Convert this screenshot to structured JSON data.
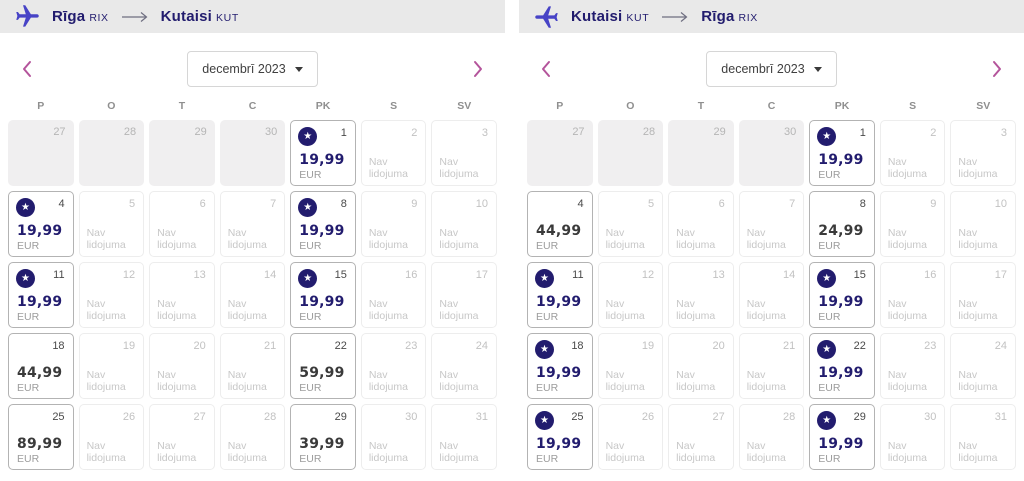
{
  "colors": {
    "navy": "#221c6e",
    "plane_blue": "#4743c6",
    "band_bg": "#e9e9e9",
    "chevron_pink": "#b4549b",
    "lowest_fare_price": "#221c6e",
    "regular_fare_price": "#3a3a3a"
  },
  "month_label": "decembrī 2023",
  "day_headers": [
    "P",
    "O",
    "T",
    "C",
    "PK",
    "S",
    "SV"
  ],
  "no_flight_label": "Nav lidojuma",
  "currency": "EUR",
  "panels": [
    {
      "direction": "outbound",
      "route": {
        "from_city": "Rīga",
        "from_code": "RIX",
        "to_city": "Kutaisi",
        "to_code": "KUT",
        "plane_points": "right"
      },
      "cells": [
        {
          "day": 27,
          "type": "prev"
        },
        {
          "day": 28,
          "type": "prev"
        },
        {
          "day": 29,
          "type": "prev"
        },
        {
          "day": 30,
          "type": "prev"
        },
        {
          "day": 1,
          "type": "flight",
          "price": "19,99",
          "star": true
        },
        {
          "day": 2,
          "type": "none"
        },
        {
          "day": 3,
          "type": "none"
        },
        {
          "day": 4,
          "type": "flight",
          "price": "19,99",
          "star": true
        },
        {
          "day": 5,
          "type": "none"
        },
        {
          "day": 6,
          "type": "none"
        },
        {
          "day": 7,
          "type": "none"
        },
        {
          "day": 8,
          "type": "flight",
          "price": "19,99",
          "star": true
        },
        {
          "day": 9,
          "type": "none"
        },
        {
          "day": 10,
          "type": "none"
        },
        {
          "day": 11,
          "type": "flight",
          "price": "19,99",
          "star": true
        },
        {
          "day": 12,
          "type": "none"
        },
        {
          "day": 13,
          "type": "none"
        },
        {
          "day": 14,
          "type": "none"
        },
        {
          "day": 15,
          "type": "flight",
          "price": "19,99",
          "star": true
        },
        {
          "day": 16,
          "type": "none"
        },
        {
          "day": 17,
          "type": "none"
        },
        {
          "day": 18,
          "type": "flight",
          "price": "44,99",
          "star": false
        },
        {
          "day": 19,
          "type": "none"
        },
        {
          "day": 20,
          "type": "none"
        },
        {
          "day": 21,
          "type": "none"
        },
        {
          "day": 22,
          "type": "flight",
          "price": "59,99",
          "star": false
        },
        {
          "day": 23,
          "type": "none"
        },
        {
          "day": 24,
          "type": "none"
        },
        {
          "day": 25,
          "type": "flight",
          "price": "89,99",
          "star": false
        },
        {
          "day": 26,
          "type": "none"
        },
        {
          "day": 27,
          "type": "none"
        },
        {
          "day": 28,
          "type": "none"
        },
        {
          "day": 29,
          "type": "flight",
          "price": "39,99",
          "star": false
        },
        {
          "day": 30,
          "type": "none"
        },
        {
          "day": 31,
          "type": "none"
        }
      ]
    },
    {
      "direction": "return",
      "route": {
        "from_city": "Kutaisi",
        "from_code": "KUT",
        "to_city": "Rīga",
        "to_code": "RIX",
        "plane_points": "left"
      },
      "cells": [
        {
          "day": 27,
          "type": "prev"
        },
        {
          "day": 28,
          "type": "prev"
        },
        {
          "day": 29,
          "type": "prev"
        },
        {
          "day": 30,
          "type": "prev"
        },
        {
          "day": 1,
          "type": "flight",
          "price": "19,99",
          "star": true
        },
        {
          "day": 2,
          "type": "none"
        },
        {
          "day": 3,
          "type": "none"
        },
        {
          "day": 4,
          "type": "flight",
          "price": "44,99",
          "star": false
        },
        {
          "day": 5,
          "type": "none"
        },
        {
          "day": 6,
          "type": "none"
        },
        {
          "day": 7,
          "type": "none"
        },
        {
          "day": 8,
          "type": "flight",
          "price": "24,99",
          "star": false
        },
        {
          "day": 9,
          "type": "none"
        },
        {
          "day": 10,
          "type": "none"
        },
        {
          "day": 11,
          "type": "flight",
          "price": "19,99",
          "star": true
        },
        {
          "day": 12,
          "type": "none"
        },
        {
          "day": 13,
          "type": "none"
        },
        {
          "day": 14,
          "type": "none"
        },
        {
          "day": 15,
          "type": "flight",
          "price": "19,99",
          "star": true
        },
        {
          "day": 16,
          "type": "none"
        },
        {
          "day": 17,
          "type": "none"
        },
        {
          "day": 18,
          "type": "flight",
          "price": "19,99",
          "star": true
        },
        {
          "day": 19,
          "type": "none"
        },
        {
          "day": 20,
          "type": "none"
        },
        {
          "day": 21,
          "type": "none"
        },
        {
          "day": 22,
          "type": "flight",
          "price": "19,99",
          "star": true
        },
        {
          "day": 23,
          "type": "none"
        },
        {
          "day": 24,
          "type": "none"
        },
        {
          "day": 25,
          "type": "flight",
          "price": "19,99",
          "star": true
        },
        {
          "day": 26,
          "type": "none"
        },
        {
          "day": 27,
          "type": "none"
        },
        {
          "day": 28,
          "type": "none"
        },
        {
          "day": 29,
          "type": "flight",
          "price": "19,99",
          "star": true
        },
        {
          "day": 30,
          "type": "none"
        },
        {
          "day": 31,
          "type": "none"
        }
      ]
    }
  ]
}
